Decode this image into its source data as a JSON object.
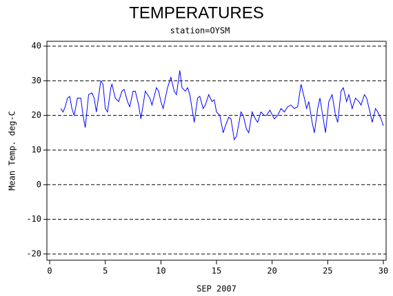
{
  "chart_data": {
    "type": "line",
    "title": "TEMPERATURES",
    "subtitle": "station=OYSM",
    "x_label": "SEP 2007",
    "y_label": "Mean Temp. deg-C",
    "x": [
      1.0,
      1.2,
      1.4,
      1.6,
      1.8,
      2.0,
      2.2,
      2.5,
      2.8,
      3.0,
      3.2,
      3.5,
      3.8,
      4.0,
      4.2,
      4.6,
      4.8,
      5.0,
      5.2,
      5.5,
      5.6,
      5.9,
      6.2,
      6.5,
      6.7,
      7.0,
      7.2,
      7.5,
      7.7,
      8.0,
      8.2,
      8.6,
      9.0,
      9.2,
      9.6,
      9.8,
      10.0,
      10.2,
      10.6,
      10.9,
      11.2,
      11.4,
      11.7,
      11.9,
      12.2,
      12.4,
      12.6,
      12.8,
      13.0,
      13.3,
      13.5,
      13.8,
      14.0,
      14.3,
      14.6,
      14.8,
      15.0,
      15.3,
      15.6,
      15.8,
      16.1,
      16.3,
      16.6,
      16.8,
      17.2,
      17.4,
      17.7,
      17.9,
      18.2,
      18.5,
      18.7,
      19.0,
      19.3,
      19.5,
      19.8,
      20.2,
      20.5,
      20.8,
      21.1,
      21.4,
      21.7,
      22.0,
      22.3,
      22.6,
      22.9,
      23.1,
      23.3,
      23.6,
      23.8,
      24.1,
      24.3,
      24.6,
      24.8,
      25.1,
      25.4,
      25.7,
      25.9,
      26.2,
      26.4,
      26.7,
      26.9,
      27.2,
      27.5,
      27.8,
      28.0,
      28.3,
      28.5,
      28.8,
      29.0,
      29.3,
      29.5,
      29.8,
      30.0
    ],
    "values": [
      22,
      21,
      22.5,
      25,
      25.5,
      22,
      20,
      25,
      25,
      20,
      16.5,
      26,
      26.5,
      25,
      21,
      30,
      29,
      22,
      21,
      28,
      29,
      25,
      24,
      27,
      27.5,
      24,
      22.5,
      27,
      27,
      23,
      19,
      27,
      25,
      23,
      28,
      27,
      24,
      22,
      28,
      31,
      27,
      26,
      33,
      28,
      27,
      28,
      26,
      22,
      18,
      25,
      25.5,
      22,
      23,
      26,
      24,
      24.5,
      21,
      20,
      15,
      17,
      19.5,
      19,
      13,
      14,
      21,
      20,
      16,
      15,
      21,
      19,
      18,
      21,
      20,
      20,
      21.5,
      19,
      20,
      22,
      21,
      22.5,
      23,
      22,
      22.5,
      29,
      25,
      22,
      24,
      18,
      15,
      22,
      25,
      19,
      15,
      24,
      26,
      20,
      18,
      27,
      28,
      24,
      26,
      22,
      25,
      24,
      23,
      26,
      25,
      21,
      18,
      22,
      21,
      19,
      17
    ],
    "color": "#0000ff",
    "xlim": [
      -0.25,
      30.25
    ],
    "xticks": [
      0,
      5,
      10,
      15,
      20,
      25,
      30
    ],
    "ylim": [
      -21.8,
      41.4
    ],
    "yticks": [
      -20,
      -10,
      0,
      10,
      20,
      30,
      40
    ],
    "grid": true
  }
}
